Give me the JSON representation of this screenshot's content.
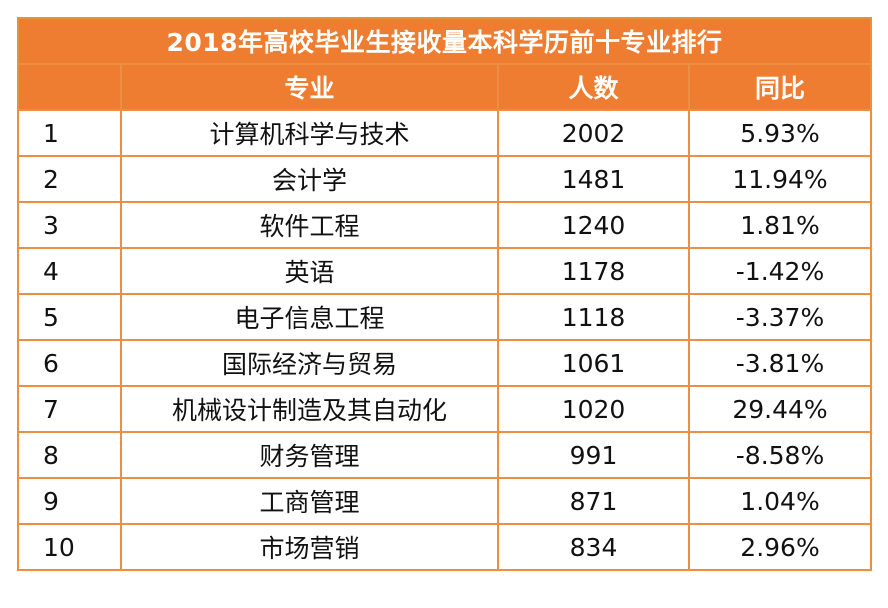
{
  "table": {
    "title": "2018年高校毕业生接收量本科学历前十专业排行",
    "headers": {
      "rank": "",
      "major": "专业",
      "count": "人数",
      "yoy": "同比"
    },
    "rows": [
      {
        "rank": "1",
        "major": "计算机科学与技术",
        "count": "2002",
        "yoy": "5.93%"
      },
      {
        "rank": "2",
        "major": "会计学",
        "count": "1481",
        "yoy": "11.94%"
      },
      {
        "rank": "3",
        "major": "软件工程",
        "count": "1240",
        "yoy": "1.81%"
      },
      {
        "rank": "4",
        "major": "英语",
        "count": "1178",
        "yoy": "-1.42%"
      },
      {
        "rank": "5",
        "major": "电子信息工程",
        "count": "1118",
        "yoy": "-3.37%"
      },
      {
        "rank": "6",
        "major": "国际经济与贸易",
        "count": "1061",
        "yoy": "-3.81%"
      },
      {
        "rank": "7",
        "major": "机械设计制造及其自动化",
        "count": "1020",
        "yoy": "29.44%"
      },
      {
        "rank": "8",
        "major": "财务管理",
        "count": "991",
        "yoy": "-8.58%"
      },
      {
        "rank": "9",
        "major": "工商管理",
        "count": "871",
        "yoy": "1.04%"
      },
      {
        "rank": "10",
        "major": "市场营销",
        "count": "834",
        "yoy": "2.96%"
      }
    ]
  },
  "colors": {
    "header_background": "#ee7d31",
    "border": "#ec8f43",
    "header_text": "#ffffff"
  }
}
